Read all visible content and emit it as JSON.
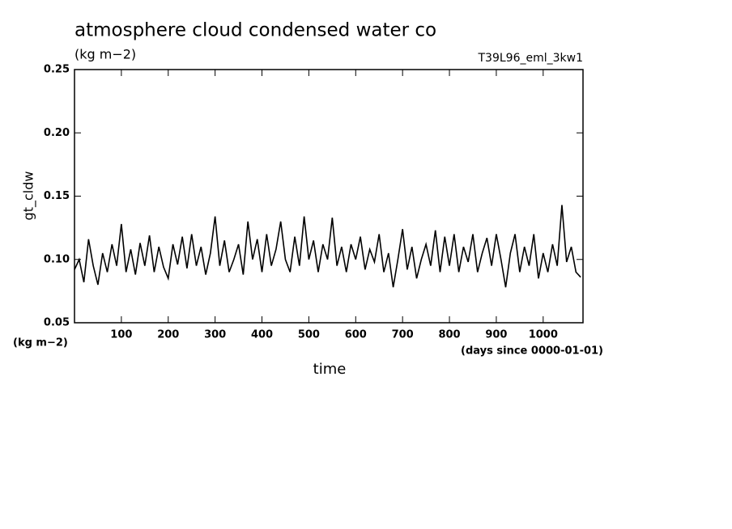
{
  "chart_data": {
    "type": "line",
    "title": "atmosphere cloud condensed water co",
    "subtitle": "(kg m−2)",
    "annotation": "T39L96_eml_3kw1",
    "ylabel": "gt_cldw",
    "y_unit": "(kg m−2)",
    "xlabel": "time",
    "x_unit": "(days since 0000-01-01)",
    "color": "#000000",
    "x": [
      0,
      10,
      20,
      30,
      40,
      50,
      60,
      70,
      80,
      90,
      100,
      110,
      120,
      130,
      140,
      150,
      160,
      170,
      180,
      190,
      200,
      210,
      220,
      230,
      240,
      250,
      260,
      270,
      280,
      290,
      300,
      310,
      320,
      330,
      340,
      350,
      360,
      370,
      380,
      390,
      400,
      410,
      420,
      430,
      440,
      450,
      460,
      470,
      480,
      490,
      500,
      510,
      520,
      530,
      540,
      550,
      560,
      570,
      580,
      590,
      600,
      610,
      620,
      630,
      640,
      650,
      660,
      670,
      680,
      690,
      700,
      710,
      720,
      730,
      740,
      750,
      760,
      770,
      780,
      790,
      800,
      810,
      820,
      830,
      840,
      850,
      860,
      870,
      880,
      890,
      900,
      910,
      920,
      930,
      940,
      950,
      960,
      970,
      980,
      990,
      1000,
      1010,
      1020,
      1030,
      1040,
      1050,
      1060,
      1070,
      1080
    ],
    "values": [
      0.092,
      0.1,
      0.082,
      0.116,
      0.095,
      0.08,
      0.105,
      0.09,
      0.112,
      0.095,
      0.128,
      0.09,
      0.108,
      0.088,
      0.113,
      0.095,
      0.119,
      0.09,
      0.11,
      0.094,
      0.085,
      0.112,
      0.096,
      0.118,
      0.093,
      0.12,
      0.095,
      0.11,
      0.088,
      0.105,
      0.134,
      0.095,
      0.115,
      0.09,
      0.1,
      0.112,
      0.088,
      0.13,
      0.1,
      0.116,
      0.09,
      0.12,
      0.095,
      0.108,
      0.13,
      0.1,
      0.09,
      0.118,
      0.095,
      0.134,
      0.1,
      0.115,
      0.09,
      0.112,
      0.1,
      0.133,
      0.095,
      0.11,
      0.09,
      0.112,
      0.1,
      0.118,
      0.092,
      0.108,
      0.098,
      0.12,
      0.09,
      0.105,
      0.078,
      0.1,
      0.124,
      0.092,
      0.11,
      0.085,
      0.1,
      0.112,
      0.095,
      0.123,
      0.09,
      0.118,
      0.095,
      0.12,
      0.09,
      0.11,
      0.098,
      0.12,
      0.09,
      0.105,
      0.117,
      0.095,
      0.12,
      0.1,
      0.078,
      0.105,
      0.12,
      0.09,
      0.11,
      0.095,
      0.12,
      0.085,
      0.105,
      0.09,
      0.112,
      0.095,
      0.143,
      0.098,
      0.11,
      0.09,
      0.086
    ],
    "xlim": [
      0,
      1085
    ],
    "xticks": [
      100,
      200,
      300,
      400,
      500,
      600,
      700,
      800,
      900,
      1000
    ],
    "ylim": [
      0.05,
      0.25
    ],
    "yticks": [
      0.05,
      {
        "value": 0.1,
        "label": "0.10"
      },
      0.15,
      {
        "value": 0.2,
        "label": "0.20"
      },
      0.25
    ]
  }
}
